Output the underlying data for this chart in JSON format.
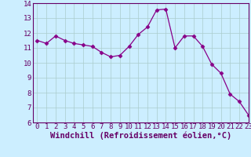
{
  "x": [
    0,
    1,
    2,
    3,
    4,
    5,
    6,
    7,
    8,
    9,
    10,
    11,
    12,
    13,
    14,
    15,
    16,
    17,
    18,
    19,
    20,
    21,
    22,
    23
  ],
  "y": [
    11.5,
    11.3,
    11.8,
    11.5,
    11.3,
    11.2,
    11.1,
    10.7,
    10.4,
    10.5,
    11.1,
    11.9,
    12.4,
    13.55,
    13.6,
    11.0,
    11.8,
    11.8,
    11.1,
    9.9,
    9.3,
    7.9,
    7.4,
    6.5
  ],
  "line_color": "#880088",
  "marker": "D",
  "marker_size": 2.5,
  "bg_color": "#cceeff",
  "grid_color": "#aacccc",
  "xlabel": "Windchill (Refroidissement éolien,°C)",
  "ylabel": "",
  "ylim": [
    6,
    14
  ],
  "xlim": [
    -0.5,
    23
  ],
  "yticks": [
    6,
    7,
    8,
    9,
    10,
    11,
    12,
    13,
    14
  ],
  "xticks": [
    0,
    1,
    2,
    3,
    4,
    5,
    6,
    7,
    8,
    9,
    10,
    11,
    12,
    13,
    14,
    15,
    16,
    17,
    18,
    19,
    20,
    21,
    22,
    23
  ],
  "tick_label_fontsize": 6.5,
  "xlabel_fontsize": 7.5,
  "axis_label_color": "#660066",
  "tick_color": "#660066",
  "spine_color": "#660066"
}
